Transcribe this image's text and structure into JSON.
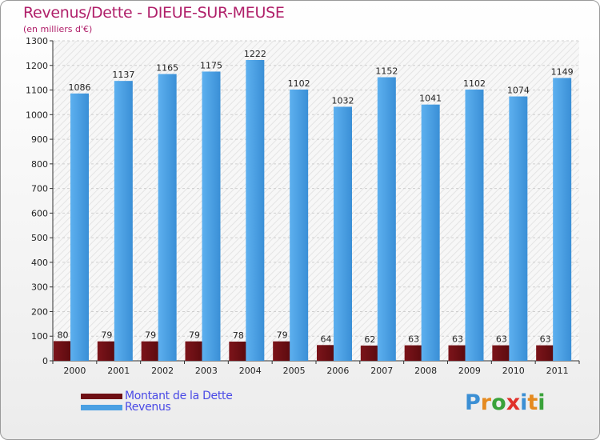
{
  "title": "Revenus/Dette - DIEUE-SUR-MEUSE",
  "subtitle": "(en milliers d'€)",
  "colors": {
    "debt": "#6e0f14",
    "revenue": "#4aa0e3",
    "title": "#b0206a",
    "legend_text": "#4a4ae6"
  },
  "chart_data": {
    "type": "bar",
    "title": "Revenus/Dette - DIEUE-SUR-MEUSE",
    "ylabel": "(en milliers d'€)",
    "xlabel": "",
    "ylim": [
      0,
      1300
    ],
    "yticks": [
      0,
      100,
      200,
      300,
      400,
      500,
      600,
      700,
      800,
      900,
      1000,
      1100,
      1200,
      1300
    ],
    "grid": true,
    "categories": [
      "2000",
      "2001",
      "2002",
      "2003",
      "2004",
      "2005",
      "2006",
      "2007",
      "2008",
      "2009",
      "2010",
      "2011"
    ],
    "series": [
      {
        "name": "Montant de la Dette",
        "values": [
          80,
          79,
          79,
          79,
          78,
          79,
          64,
          62,
          63,
          63,
          63,
          63
        ]
      },
      {
        "name": "Revenus",
        "values": [
          1086,
          1137,
          1165,
          1175,
          1222,
          1102,
          1032,
          1152,
          1041,
          1102,
          1074,
          1149
        ]
      }
    ]
  },
  "legend": {
    "debt": "Montant de la Dette",
    "revenue": "Revenus"
  },
  "logo": {
    "letters": [
      "P",
      "r",
      "o",
      "x",
      "i",
      "t",
      "i"
    ]
  }
}
